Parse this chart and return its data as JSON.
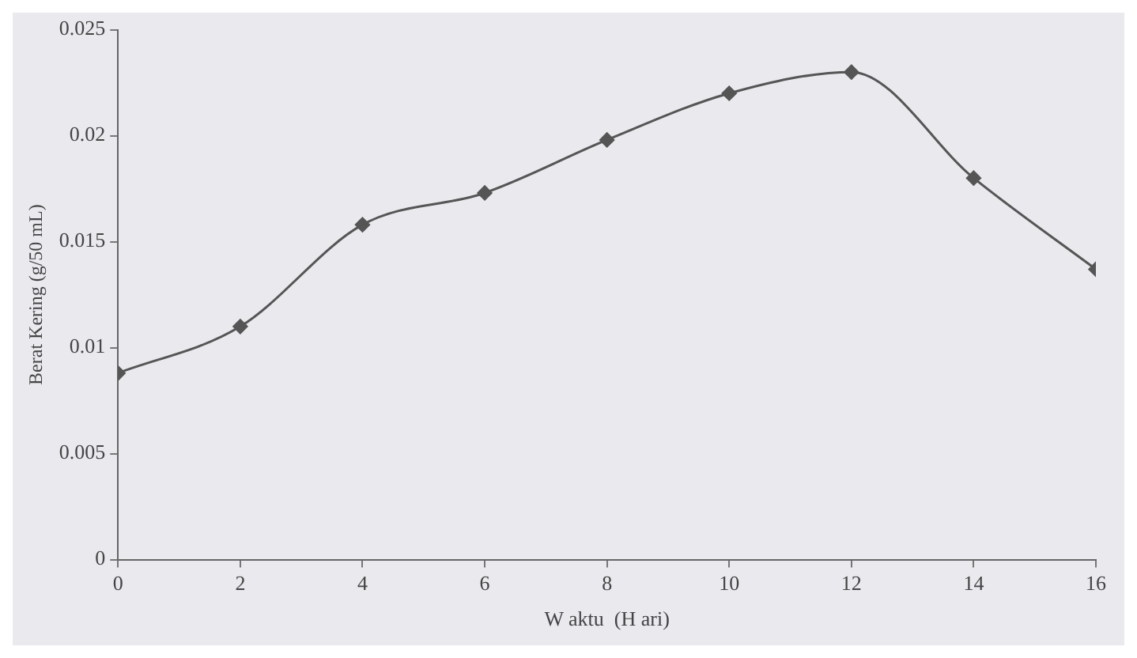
{
  "chart_data": {
    "type": "line",
    "xlabel": "W aktu  (H ari)",
    "ylabel": "Berat Kering (g/50 mL)",
    "x": [
      0,
      2,
      4,
      6,
      8,
      10,
      12,
      14,
      16
    ],
    "series": [
      {
        "color": "#555555",
        "values": [
          0.0088,
          0.011,
          0.0158,
          0.0173,
          0.0198,
          0.022,
          0.023,
          0.018,
          0.0137
        ]
      }
    ],
    "xlim": [
      0,
      16
    ],
    "xticks": [
      0,
      2,
      4,
      6,
      8,
      10,
      12,
      14,
      16
    ],
    "ylim": [
      0,
      0.025
    ],
    "yticks": [
      0,
      0.005,
      0.01,
      0.015,
      0.02,
      0.025
    ],
    "grid": false,
    "legend": false,
    "marker": "diamond",
    "line_style": "solid"
  }
}
